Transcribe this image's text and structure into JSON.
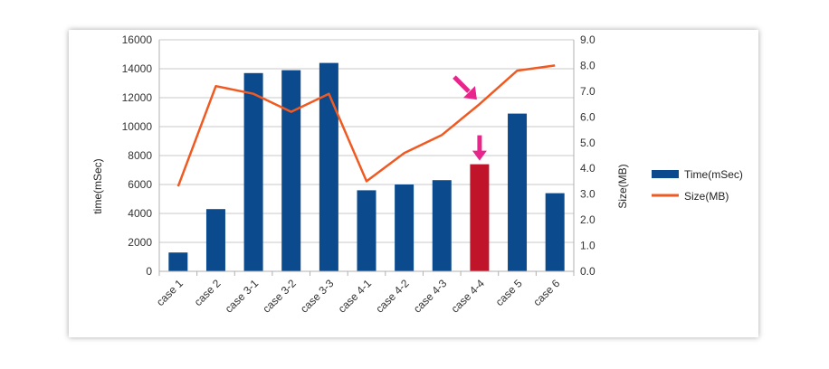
{
  "chart_data": {
    "type": "bar",
    "categories": [
      "case 1",
      "case 2",
      "case 3-1",
      "case 3-2",
      "case 3-3",
      "case 4-1",
      "case 4-2",
      "case 4-3",
      "case 4-4",
      "case 5",
      "case 6"
    ],
    "series": [
      {
        "name": "Time(mSec)",
        "type": "bar",
        "axis": "left",
        "color": "#0b4a8c",
        "values": [
          1300,
          4300,
          13700,
          13900,
          14400,
          5600,
          6000,
          6300,
          7400,
          10900,
          5400
        ],
        "highlight_index": 8,
        "highlight_color": "#c0142b"
      },
      {
        "name": "Size(MB)",
        "type": "line",
        "axis": "right",
        "color": "#f05a22",
        "values": [
          3.3,
          7.2,
          6.9,
          6.2,
          6.9,
          3.5,
          4.6,
          5.3,
          6.5,
          7.8,
          8.0
        ]
      }
    ],
    "ylabel": "time(mSec)",
    "y2label": "Size(MB)",
    "ylim": [
      0,
      16000
    ],
    "y2lim": [
      0,
      9.0
    ],
    "yticks": [
      "0",
      "2000",
      "4000",
      "6000",
      "8000",
      "10000",
      "12000",
      "14000",
      "16000"
    ],
    "y2ticks": [
      "0.0",
      "1.0",
      "2.0",
      "3.0",
      "4.0",
      "5.0",
      "6.0",
      "7.0",
      "8.0",
      "9.0"
    ],
    "grid": true,
    "legend_position": "right",
    "annotations": [
      {
        "type": "arrow",
        "target": "Size(MB)",
        "category_index": 8,
        "color": "#e8258a"
      },
      {
        "type": "arrow",
        "target": "Time(mSec)",
        "category_index": 8,
        "color": "#e8258a"
      }
    ]
  }
}
